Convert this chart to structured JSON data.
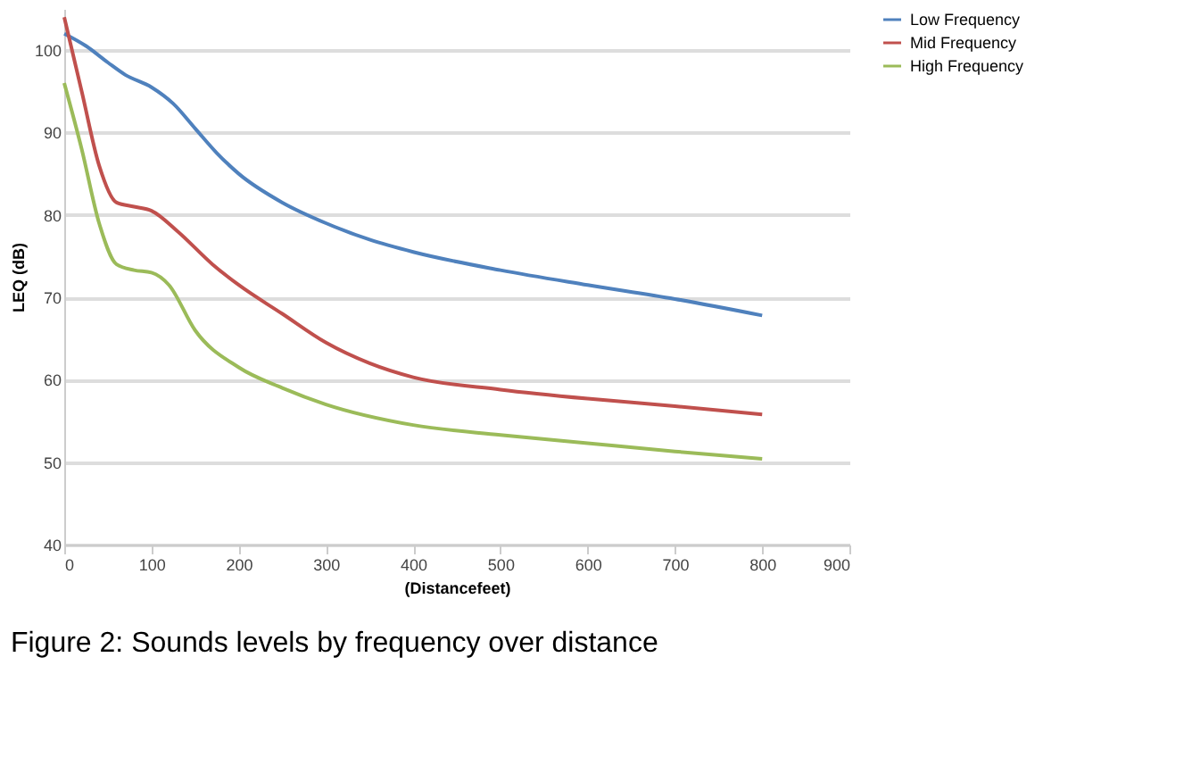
{
  "chart_data": {
    "type": "line",
    "xlabel": "(Distancefeet)",
    "ylabel": "LEQ (dB)",
    "annotations": [
      "Figure 2: Sounds levels by frequency over distance"
    ],
    "xlim": [
      0,
      900
    ],
    "xticks": [
      0,
      100,
      200,
      300,
      400,
      500,
      600,
      700,
      800,
      900
    ],
    "ylim": [
      40,
      105
    ],
    "yticks": [
      40,
      50,
      60,
      70,
      80,
      90,
      100
    ],
    "grid": "y",
    "legend": "right",
    "line_style": "solid",
    "marker": "none",
    "series": [
      {
        "name": "Low Frequency",
        "color": "#4f81bd",
        "x": [
          0,
          25,
          50,
          70,
          100,
          125,
          150,
          175,
          200,
          250,
          300,
          350,
          400,
          500,
          600,
          700,
          800
        ],
        "values": [
          102,
          100.5,
          98.5,
          97,
          95.5,
          93.5,
          90.5,
          87.5,
          85,
          81.5,
          79,
          77,
          75.5,
          73.3,
          71.5,
          69.8,
          67.8
        ]
      },
      {
        "name": "Mid Frequency",
        "color": "#c0504d",
        "x": [
          0,
          20,
          40,
          60,
          80,
          100,
          130,
          170,
          200,
          250,
          300,
          350,
          400,
          500,
          600,
          700,
          800
        ],
        "values": [
          104,
          95,
          86,
          81.5,
          81,
          80.5,
          78,
          74,
          71.5,
          68,
          64.5,
          62,
          60.3,
          58.8,
          57.7,
          56.8,
          55.8
        ]
      },
      {
        "name": "High Frequency",
        "color": "#9bbb59",
        "x": [
          0,
          20,
          40,
          60,
          80,
          100,
          120,
          150,
          200,
          250,
          300,
          400,
          500,
          600,
          700,
          800
        ],
        "values": [
          96,
          88,
          79,
          74,
          73.3,
          73,
          71.5,
          66,
          61.5,
          59,
          57,
          54.5,
          53.3,
          52.3,
          51.3,
          50.4
        ]
      }
    ]
  }
}
